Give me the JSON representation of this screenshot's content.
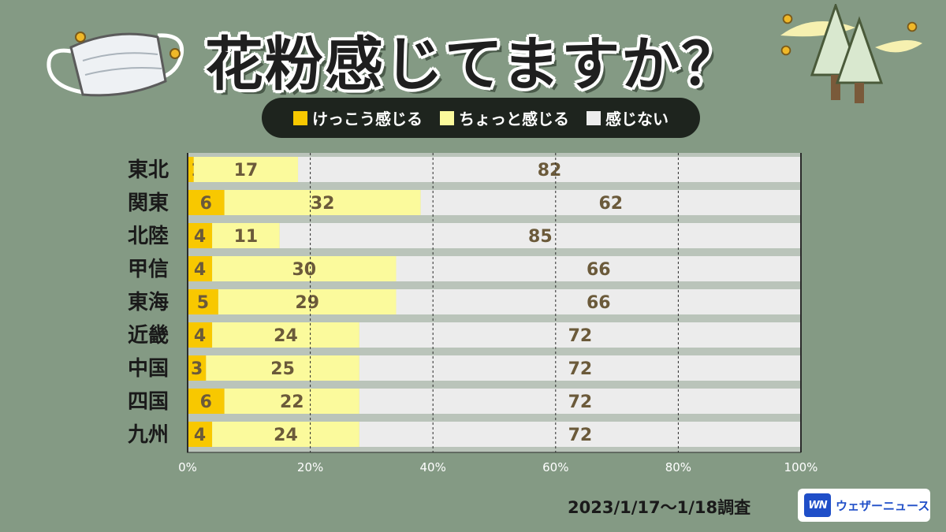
{
  "title": "花粉感じてますか？",
  "legend": [
    {
      "label": "けっこう感じる",
      "color": "#f8c800"
    },
    {
      "label": "ちょっと感じる",
      "color": "#fbfa9c"
    },
    {
      "label": "感じない",
      "color": "#ececec"
    }
  ],
  "chart_data": {
    "type": "bar",
    "orientation": "horizontal-stacked",
    "categories": [
      "東北",
      "関東",
      "北陸",
      "甲信",
      "東海",
      "近畿",
      "中国",
      "四国",
      "九州"
    ],
    "series": [
      {
        "name": "けっこう感じる",
        "values": [
          1,
          6,
          4,
          4,
          5,
          4,
          3,
          6,
          4
        ]
      },
      {
        "name": "ちょっと感じる",
        "values": [
          17,
          32,
          11,
          30,
          29,
          24,
          25,
          22,
          24
        ]
      },
      {
        "name": "感じない",
        "values": [
          82,
          62,
          85,
          66,
          66,
          72,
          72,
          72,
          72
        ]
      }
    ],
    "xlim": [
      0,
      100
    ],
    "xticks": [
      "0%",
      "20%",
      "40%",
      "60%",
      "80%",
      "100%"
    ],
    "grid": true
  },
  "survey_date": "2023/1/17〜1/18調査",
  "brand": {
    "logo": "WN",
    "name": "ウェザーニュース"
  }
}
